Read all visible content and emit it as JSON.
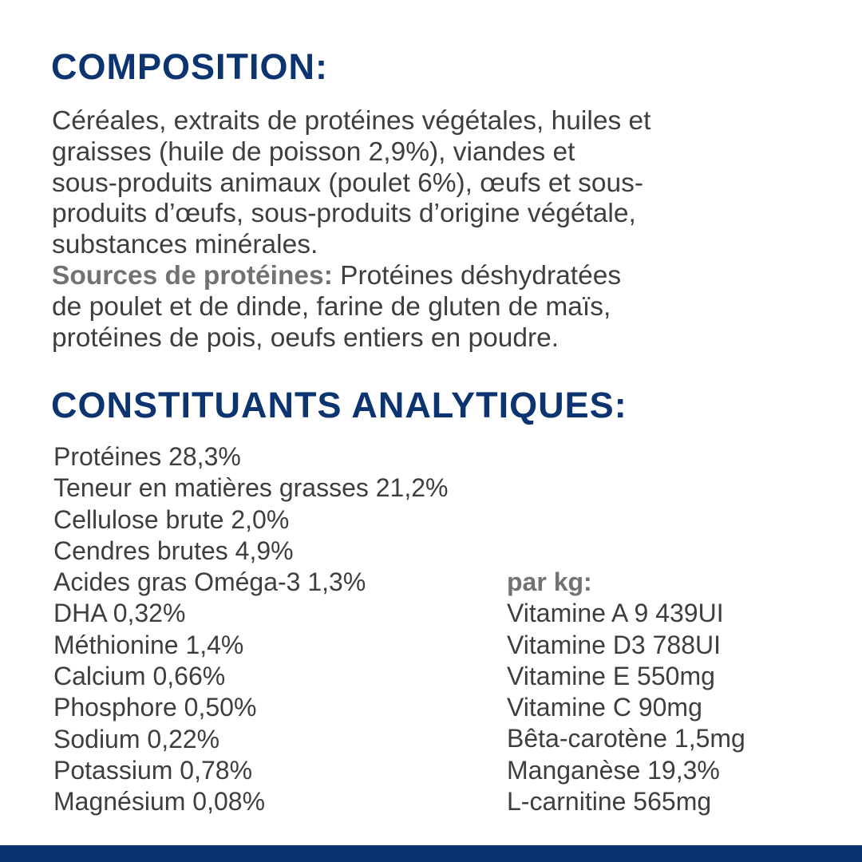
{
  "composition": {
    "heading": "COMPOSITION:",
    "lines": [
      "Céréales, extraits de protéines végétales, huiles et",
      "graisses (huile de poisson 2,9%), viandes et",
      "sous-produits animaux (poulet 6%), œufs et sous-",
      "produits d’œufs, sous-produits d’origine végétale,",
      "substances minérales."
    ],
    "protein_label": "Sources de protéines:",
    "protein_lines": [
      " Protéines déshydratées",
      "de poulet et de dinde, farine de gluten de maïs,",
      "protéines de pois, oeufs entiers en poudre."
    ]
  },
  "analytics": {
    "heading": "CONSTITUANTS ANALYTIQUES:",
    "left": [
      "Protéines 28,3%",
      "Teneur en matières grasses 21,2%",
      "Cellulose brute 2,0%",
      "Cendres brutes 4,9%",
      "Acides gras Oméga-3 1,3%",
      "DHA 0,32%",
      "Méthionine 1,4%",
      "Calcium 0,66%",
      "Phosphore 0,50%",
      "Sodium 0,22%",
      "Potassium 0,78%",
      "Magnésium 0,08%"
    ],
    "right_label": "par kg:",
    "right": [
      "Vitamine A 9 439UI",
      "Vitamine D3 788UI",
      "Vitamine E 550mg",
      "Vitamine C 90mg",
      "Bêta-carotène 1,5mg",
      "Manganèse 19,3%",
      "L-carnitine 565mg"
    ]
  },
  "colors": {
    "heading": "#0b3470",
    "text": "#3e3e3e",
    "label": "#727272",
    "bar": "#0b3372"
  }
}
